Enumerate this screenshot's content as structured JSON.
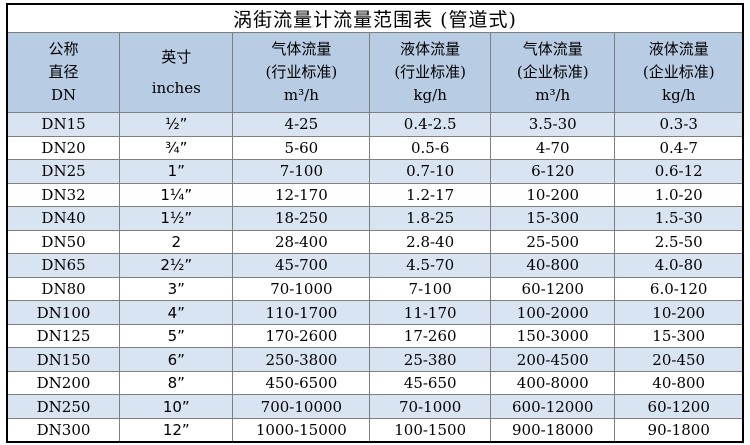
{
  "title": "涡街流量计流量范围表 (管道式)",
  "colors": {
    "header_bg": "#b8cce4",
    "band_bg": "#d9e4f2",
    "grid_line": "#7f7f7f",
    "outer_border": "#000000"
  },
  "table": {
    "columns": [
      {
        "id": "dn",
        "lines": [
          "公称",
          "直径",
          "DN"
        ]
      },
      {
        "id": "inches",
        "lines": [
          "英寸",
          "inches"
        ]
      },
      {
        "id": "gas-industry",
        "lines": [
          "气体流量",
          "(行业标准)",
          "m³/h"
        ]
      },
      {
        "id": "liquid-industry",
        "lines": [
          "液体流量",
          "(行业标准)",
          "kg/h"
        ]
      },
      {
        "id": "gas-enterprise",
        "lines": [
          "气体流量",
          "(企业标准)",
          "m³/h"
        ]
      },
      {
        "id": "liquid-enterprise",
        "lines": [
          "液体流量",
          "(企业标准)",
          "kg/h"
        ]
      }
    ],
    "rows": [
      [
        "DN15",
        "½”",
        "4-25",
        "0.4-2.5",
        "3.5-30",
        "0.3-3"
      ],
      [
        "DN20",
        "¾”",
        "5-60",
        "0.5-6",
        "4-70",
        "0.4-7"
      ],
      [
        "DN25",
        "1”",
        "7-100",
        "0.7-10",
        "6-120",
        "0.6-12"
      ],
      [
        "DN32",
        "1¼”",
        "12-170",
        "1.2-17",
        "10-200",
        "1.0-20"
      ],
      [
        "DN40",
        "1½”",
        "18-250",
        "1.8-25",
        "15-300",
        "1.5-30"
      ],
      [
        "DN50",
        "2",
        "28-400",
        "2.8-40",
        "25-500",
        "2.5-50"
      ],
      [
        "DN65",
        "2½”",
        "45-700",
        "4.5-70",
        "40-800",
        "4.0-80"
      ],
      [
        "DN80",
        "3”",
        "70-1000",
        "7-100",
        "60-1200",
        "6.0-120"
      ],
      [
        "DN100",
        "4”",
        "110-1700",
        "11-170",
        "100-2000",
        "10-200"
      ],
      [
        "DN125",
        "5”",
        "170-2600",
        "17-260",
        "150-3000",
        "15-300"
      ],
      [
        "DN150",
        "6”",
        "250-3800",
        "25-380",
        "200-4500",
        "20-450"
      ],
      [
        "DN200",
        "8”",
        "450-6500",
        "45-650",
        "400-8000",
        "40-800"
      ],
      [
        "DN250",
        "10”",
        "700-10000",
        "70-1000",
        "600-12000",
        "60-1200"
      ],
      [
        "DN300",
        "12”",
        "1000-15000",
        "100-1500",
        "900-18000",
        "90-1800"
      ]
    ]
  }
}
